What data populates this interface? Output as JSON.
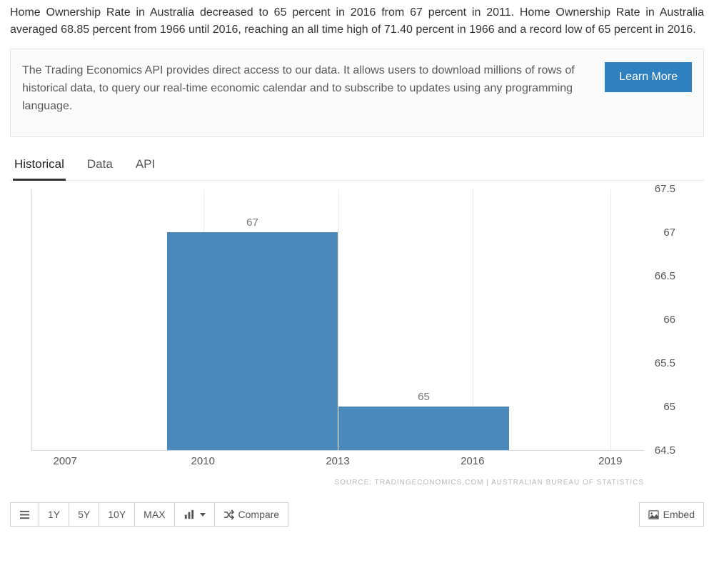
{
  "intro": "Home Ownership Rate in Australia decreased to 65 percent in 2016 from 67 percent in 2011. Home Ownership Rate in Australia averaged 68.85 percent from 1966 until 2016, reaching an all time high of 71.40 percent in 1966 and a record low of 65 percent in 2016.",
  "api_panel": {
    "text": "The Trading Economics API provides direct access to our data. It allows users to download millions of rows of historical data, to query our real-time economic calendar and to subscribe to updates using any programming language.",
    "button": "Learn More"
  },
  "tabs": [
    "Historical",
    "Data",
    "API"
  ],
  "active_tab": 0,
  "chart": {
    "type": "bar",
    "y_min": 64.5,
    "y_max": 67.5,
    "y_ticks": [
      64.5,
      65,
      65.5,
      66,
      66.5,
      67,
      67.5
    ],
    "x_ticks": [
      "2007",
      "2010",
      "2013",
      "2016",
      "2019"
    ],
    "x_tick_pos_pct": [
      5.5,
      28,
      50,
      72,
      94.5
    ],
    "vgrid_pos_pct": [
      28,
      50,
      72,
      94.5
    ],
    "bars": [
      {
        "label": "67",
        "value": 67,
        "left_pct": 22,
        "width_pct": 28,
        "color": "#4a89b9"
      },
      {
        "label": "65",
        "value": 65,
        "left_pct": 50,
        "width_pct": 28,
        "color": "#4a89b9"
      }
    ],
    "bg": "#ffffff",
    "grid_color": "#ececec",
    "axis_color": "#d8d8d8",
    "label_color": "#555555",
    "source": "SOURCE: TRADINGECONOMICS.COM | AUSTRALIAN BUREAU OF STATISTICS"
  },
  "toolbar": {
    "ranges": [
      "1Y",
      "5Y",
      "10Y",
      "MAX"
    ],
    "compare": "Compare",
    "embed": "Embed"
  }
}
